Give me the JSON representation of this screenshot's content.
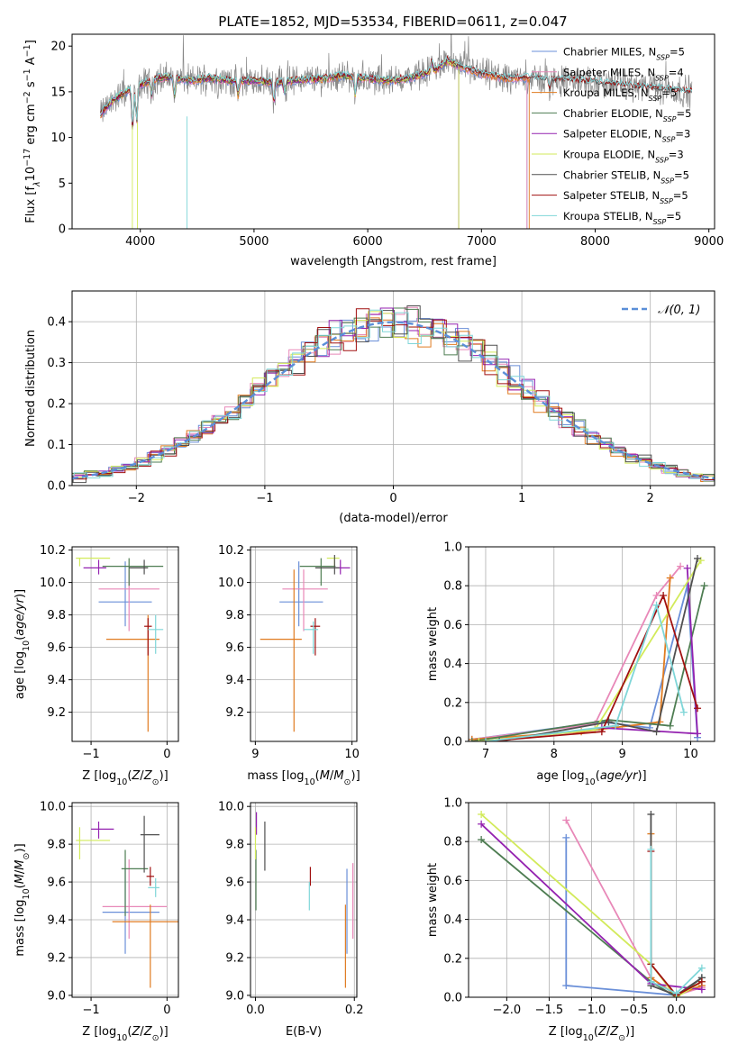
{
  "figure_title": "PLATE=1852, MJD=53534, FIBERID=0611, z=0.047",
  "colors": {
    "Chabrier MILES": "#6a8fd8",
    "Salpeter MILES": "#e888b8",
    "Kroupa MILES": "#e07b20",
    "Chabrier ELODIE": "#4e7d52",
    "Salpeter ELODIE": "#9422b0",
    "Kroupa ELODIE": "#d2ea5a",
    "Chabrier STELIB": "#505050",
    "Salpeter STELIB": "#a01010",
    "Kroupa STELIB": "#7fd6d8"
  },
  "chart_data": [
    {
      "id": "spectrum",
      "type": "line",
      "title": "PLATE=1852, MJD=53534, FIBERID=0611, z=0.047",
      "xlabel": "wavelength [Angstrom, rest frame]",
      "ylabel_parts": [
        "Flux [f",
        "λ",
        "10",
        "−17",
        " erg cm",
        "−2",
        " s",
        "−1",
        " A",
        "−1",
        "]"
      ],
      "xlim": [
        3400,
        9050
      ],
      "ylim": [
        0,
        21.3
      ],
      "xticks": [
        4000,
        5000,
        6000,
        7000,
        8000,
        9000
      ],
      "yticks": [
        0,
        5,
        10,
        15,
        20
      ],
      "grid": false,
      "legend_position": "top-right",
      "legend": [
        {
          "name": "Chabrier MILES",
          "nssp": "5"
        },
        {
          "name": "Salpeter MILES",
          "nssp": "4"
        },
        {
          "name": "Kroupa MILES",
          "nssp": "5"
        },
        {
          "name": "Chabrier ELODIE",
          "nssp": "5"
        },
        {
          "name": "Salpeter ELODIE",
          "nssp": "3"
        },
        {
          "name": "Kroupa ELODIE",
          "nssp": "3"
        },
        {
          "name": "Chabrier STELIB",
          "nssp": "5"
        },
        {
          "name": "Salpeter STELIB",
          "nssp": "5"
        },
        {
          "name": "Kroupa STELIB",
          "nssp": "5"
        }
      ],
      "continuum": {
        "x": [
          3650,
          3750,
          3850,
          3950,
          4050,
          4150,
          4300,
          4450,
          4600,
          4800,
          5000,
          5200,
          5400,
          5600,
          5800,
          6000,
          6200,
          6400,
          6600,
          6700,
          6800,
          7000,
          7200,
          7400,
          7600,
          7800,
          8000,
          8200,
          8400,
          8600,
          8800
        ],
        "y": [
          12.5,
          14.0,
          14.8,
          15.5,
          16.0,
          16.5,
          16.6,
          16.2,
          16.5,
          16.2,
          16.2,
          16.0,
          16.3,
          16.4,
          16.8,
          16.4,
          16.2,
          16.6,
          17.4,
          18.4,
          17.8,
          17.0,
          16.5,
          16.5,
          16.3,
          16.2,
          16.0,
          15.8,
          15.5,
          15.3,
          15.0
        ]
      },
      "data_range": [
        3650,
        8850
      ],
      "model_range": {
        "Chabrier MILES": [
          3650,
          7400
        ],
        "Salpeter MILES": [
          3650,
          7400
        ],
        "Kroupa MILES": [
          3650,
          7420
        ],
        "Chabrier ELODIE": [
          3650,
          6800
        ],
        "Salpeter ELODIE": [
          3650,
          6800
        ],
        "Kroupa ELODIE": [
          3650,
          6800
        ],
        "Chabrier STELIB": [
          3650,
          8850
        ],
        "Salpeter STELIB": [
          3650,
          8850
        ],
        "Kroupa STELIB": [
          3650,
          8850
        ]
      }
    },
    {
      "id": "residuals",
      "type": "histogram",
      "xlabel": "(data-model)/error",
      "ylabel": "Normed distribution",
      "xlim": [
        -2.5,
        2.5
      ],
      "ylim": [
        0,
        0.475
      ],
      "xticks": [
        -2,
        -1,
        0,
        1,
        2
      ],
      "yticks": [
        0.0,
        0.1,
        0.2,
        0.3,
        0.4
      ],
      "grid": true,
      "bin_width": 0.1,
      "gaussian_label": "𝒩(0, 1)",
      "legend_position": "top-right"
    },
    {
      "id": "age_vs_Z",
      "type": "errorbar",
      "xlabel": "Z [log10(Z/Z⊙)]",
      "ylabel": "age  [log10(age/yr)]",
      "xlim": [
        -1.25,
        0.15
      ],
      "ylim": [
        9.02,
        10.22
      ],
      "xticks": [
        -1,
        0
      ],
      "yticks": [
        9.2,
        9.4,
        9.6,
        9.8,
        10.0,
        10.2
      ],
      "grid": true,
      "points": [
        {
          "series": "Chabrier MILES",
          "x": -0.55,
          "xerr": [
            0.35,
            0.35
          ],
          "y": 9.88,
          "yerr": [
            0.15,
            0.25
          ]
        },
        {
          "series": "Salpeter MILES",
          "x": -0.5,
          "xerr": [
            0.4,
            0.4
          ],
          "y": 9.96,
          "yerr": [
            0.26,
            0.12
          ]
        },
        {
          "series": "Kroupa MILES",
          "x": -0.25,
          "xerr": [
            0.55,
            0.15
          ],
          "y": 9.65,
          "yerr": [
            0.57,
            0.15
          ]
        },
        {
          "series": "Chabrier ELODIE",
          "x": -0.5,
          "xerr": [
            0.35,
            0.45
          ],
          "y": 10.1,
          "yerr": [
            0.12,
            0.05
          ]
        },
        {
          "series": "Salpeter ELODIE",
          "x": -0.9,
          "xerr": [
            0.2,
            0.1
          ],
          "y": 10.09,
          "yerr": [
            0.04,
            0.05
          ]
        },
        {
          "series": "Kroupa ELODIE",
          "x": -1.15,
          "xerr": [
            0.05,
            0.4
          ],
          "y": 10.15,
          "yerr": [
            0.05,
            0.0
          ]
        },
        {
          "series": "Chabrier STELIB",
          "x": -0.3,
          "xerr": [
            0.2,
            0.05
          ],
          "y": 10.09,
          "yerr": [
            0.04,
            0.05
          ]
        },
        {
          "series": "Salpeter STELIB",
          "x": -0.25,
          "xerr": [
            0.05,
            0.05
          ],
          "y": 9.73,
          "yerr": [
            0.18,
            0.05
          ]
        },
        {
          "series": "Kroupa STELIB",
          "x": -0.15,
          "xerr": [
            0.1,
            0.1
          ],
          "y": 9.71,
          "yerr": [
            0.15,
            0.09
          ]
        }
      ]
    },
    {
      "id": "age_vs_mass",
      "type": "errorbar",
      "xlabel": "mass [log10(M/M⊙)]",
      "ylabel": "",
      "xlim": [
        8.95,
        10.05
      ],
      "ylim": [
        9.02,
        10.22
      ],
      "xticks": [
        9,
        10
      ],
      "yticks": [
        9.2,
        9.4,
        9.6,
        9.8,
        10.0,
        10.2
      ],
      "grid": true,
      "points": [
        {
          "series": "Chabrier MILES",
          "x": 9.45,
          "xerr": [
            0.2,
            0.25
          ],
          "y": 9.88,
          "yerr": [
            0.15,
            0.25
          ]
        },
        {
          "series": "Salpeter MILES",
          "x": 9.5,
          "xerr": [
            0.22,
            0.25
          ],
          "y": 9.96,
          "yerr": [
            0.26,
            0.12
          ]
        },
        {
          "series": "Kroupa MILES",
          "x": 9.4,
          "xerr": [
            0.35,
            0.08
          ],
          "y": 9.65,
          "yerr": [
            0.57,
            0.43
          ]
        },
        {
          "series": "Chabrier ELODIE",
          "x": 9.68,
          "xerr": [
            0.22,
            0.15
          ],
          "y": 10.1,
          "yerr": [
            0.12,
            0.05
          ]
        },
        {
          "series": "Salpeter ELODIE",
          "x": 9.88,
          "xerr": [
            0.05,
            0.1
          ],
          "y": 10.09,
          "yerr": [
            0.04,
            0.05
          ]
        },
        {
          "series": "Kroupa ELODIE",
          "x": 9.82,
          "xerr": [
            0.08,
            0.05
          ],
          "y": 10.15,
          "yerr": [
            0.05,
            0.0
          ]
        },
        {
          "series": "Chabrier STELIB",
          "x": 9.82,
          "xerr": [
            0.2,
            0.05
          ],
          "y": 10.09,
          "yerr": [
            0.04,
            0.08
          ]
        },
        {
          "series": "Salpeter STELIB",
          "x": 9.62,
          "xerr": [
            0.05,
            0.05
          ],
          "y": 9.73,
          "yerr": [
            0.18,
            0.05
          ]
        },
        {
          "series": "Kroupa STELIB",
          "x": 9.6,
          "xerr": [
            0.1,
            0.05
          ],
          "y": 9.71,
          "yerr": [
            0.15,
            0.05
          ]
        }
      ]
    },
    {
      "id": "mass_weight_vs_age",
      "type": "line",
      "xlabel": "age  [log10(age/yr)]",
      "ylabel": "mass weight",
      "xlim": [
        6.75,
        10.35
      ],
      "ylim": [
        0,
        1
      ],
      "xticks": [
        7,
        8,
        9,
        10
      ],
      "yticks": [
        0.0,
        0.2,
        0.4,
        0.6,
        0.8,
        1.0
      ],
      "grid": true,
      "series": [
        {
          "name": "Chabrier MILES",
          "x": [
            6.8,
            8.7,
            9.4,
            9.95,
            10.1
          ],
          "y": [
            0.01,
            0.1,
            0.07,
            0.8,
            0.02
          ]
        },
        {
          "name": "Salpeter MILES",
          "x": [
            6.8,
            8.6,
            9.5,
            9.85
          ],
          "y": [
            0.01,
            0.09,
            0.75,
            0.9
          ]
        },
        {
          "name": "Kroupa MILES",
          "x": [
            6.8,
            8.4,
            9.55,
            9.7
          ],
          "y": [
            0.01,
            0.05,
            0.1,
            0.84
          ]
        },
        {
          "name": "Chabrier ELODIE",
          "x": [
            6.8,
            8.8,
            9.7,
            10.2
          ],
          "y": [
            0.0,
            0.11,
            0.08,
            0.8
          ]
        },
        {
          "name": "Salpeter ELODIE",
          "x": [
            7.0,
            8.7,
            10.1,
            9.95
          ],
          "y": [
            0.0,
            0.07,
            0.04,
            0.89
          ]
        },
        {
          "name": "Kroupa ELODIE",
          "x": [
            6.9,
            8.6,
            10.15
          ],
          "y": [
            0.0,
            0.06,
            0.93
          ]
        },
        {
          "name": "Chabrier STELIB",
          "x": [
            7.2,
            8.8,
            9.5,
            10.1
          ],
          "y": [
            0.0,
            0.1,
            0.05,
            0.94
          ]
        },
        {
          "name": "Salpeter STELIB",
          "x": [
            7.0,
            8.7,
            9.6,
            10.1
          ],
          "y": [
            0.0,
            0.05,
            0.75,
            0.17
          ]
        },
        {
          "name": "Kroupa STELIB",
          "x": [
            7.0,
            8.9,
            9.5,
            9.9
          ],
          "y": [
            0.0,
            0.08,
            0.7,
            0.15
          ]
        }
      ]
    },
    {
      "id": "mass_vs_Z",
      "type": "errorbar",
      "xlabel": "Z [log10(Z/Z⊙)]",
      "ylabel": "mass [log10(M/M⊙)]",
      "xlim": [
        -1.25,
        0.15
      ],
      "ylim": [
        8.99,
        10.02
      ],
      "xticks": [
        -1,
        0
      ],
      "yticks": [
        9.0,
        9.2,
        9.4,
        9.6,
        9.8,
        10.0
      ],
      "grid": true,
      "points": [
        {
          "series": "Chabrier MILES",
          "x": -0.55,
          "xerr": [
            0.3,
            0.45
          ],
          "y": 9.44,
          "yerr": [
            0.22,
            0.23
          ]
        },
        {
          "series": "Salpeter MILES",
          "x": -0.5,
          "xerr": [
            0.35,
            0.5
          ],
          "y": 9.47,
          "yerr": [
            0.17,
            0.25
          ]
        },
        {
          "series": "Kroupa MILES",
          "x": -0.22,
          "xerr": [
            0.5,
            0.4
          ],
          "y": 9.39,
          "yerr": [
            0.35,
            0.09
          ]
        },
        {
          "series": "Chabrier ELODIE",
          "x": -0.55,
          "xerr": [
            0.05,
            0.3
          ],
          "y": 9.67,
          "yerr": [
            0.25,
            0.1
          ]
        },
        {
          "series": "Salpeter ELODIE",
          "x": -0.9,
          "xerr": [
            0.1,
            0.2
          ],
          "y": 9.88,
          "yerr": [
            0.05,
            0.04
          ]
        },
        {
          "series": "Kroupa ELODIE",
          "x": -1.15,
          "xerr": [
            0.05,
            0.4
          ],
          "y": 9.82,
          "yerr": [
            0.1,
            0.07
          ]
        },
        {
          "series": "Chabrier STELIB",
          "x": -0.3,
          "xerr": [
            0.05,
            0.2
          ],
          "y": 9.85,
          "yerr": [
            0.2,
            0.1
          ]
        },
        {
          "series": "Salpeter STELIB",
          "x": -0.22,
          "xerr": [
            0.05,
            0.05
          ],
          "y": 9.63,
          "yerr": [
            0.05,
            0.05
          ]
        },
        {
          "series": "Kroupa STELIB",
          "x": -0.15,
          "xerr": [
            0.1,
            0.05
          ],
          "y": 9.57,
          "yerr": [
            0.05,
            0.05
          ]
        }
      ]
    },
    {
      "id": "mass_vs_EBV",
      "type": "errorbar",
      "xlabel": "E(B-V)",
      "ylabel": "",
      "xlim": [
        -0.01,
        0.205
      ],
      "ylim": [
        8.99,
        10.02
      ],
      "xticks": [
        0.0,
        0.2
      ],
      "yticks": [
        9.0,
        9.2,
        9.4,
        9.6,
        9.8,
        10.0
      ],
      "grid": true,
      "points": [
        {
          "series": "Chabrier MILES",
          "x": 0.185,
          "y": 9.44,
          "yerr": [
            0.22,
            0.23
          ]
        },
        {
          "series": "Salpeter MILES",
          "x": 0.197,
          "y": 9.47,
          "yerr": [
            0.17,
            0.23
          ]
        },
        {
          "series": "Kroupa MILES",
          "x": 0.182,
          "y": 9.39,
          "yerr": [
            0.35,
            0.09
          ]
        },
        {
          "series": "Chabrier ELODIE",
          "x": 0.001,
          "y": 9.67,
          "yerr": [
            0.22,
            0.1
          ]
        },
        {
          "series": "Salpeter ELODIE",
          "x": 0.002,
          "y": 9.88,
          "yerr": [
            0.03,
            0.09
          ]
        },
        {
          "series": "Kroupa ELODIE",
          "x": 0.0,
          "y": 9.82,
          "yerr": [
            0.1,
            0.07
          ]
        },
        {
          "series": "Chabrier STELIB",
          "x": 0.019,
          "y": 9.8,
          "yerr": [
            0.14,
            0.12
          ]
        },
        {
          "series": "Salpeter STELIB",
          "x": 0.111,
          "y": 9.63,
          "yerr": [
            0.05,
            0.05
          ]
        },
        {
          "series": "Kroupa STELIB",
          "x": 0.109,
          "y": 9.55,
          "yerr": [
            0.1,
            0.05
          ]
        }
      ]
    },
    {
      "id": "mass_weight_vs_Z",
      "type": "line",
      "xlabel": "Z [log10(Z/Z⊙)]",
      "ylabel": "mass weight",
      "xlim": [
        -2.45,
        0.45
      ],
      "ylim": [
        0,
        1
      ],
      "xticks": [
        -2.0,
        -1.5,
        -1.0,
        -0.5,
        0.0
      ],
      "yticks": [
        0.0,
        0.2,
        0.4,
        0.6,
        0.8,
        1.0
      ],
      "grid": true,
      "series": [
        {
          "name": "Chabrier MILES",
          "x": [
            -1.3,
            -1.3,
            0.0,
            0.3
          ],
          "y": [
            0.82,
            0.06,
            0.01,
            0.1
          ]
        },
        {
          "name": "Salpeter MILES",
          "x": [
            -1.3,
            -0.3,
            0.0,
            0.3
          ],
          "y": [
            0.91,
            0.1,
            0.01,
            0.05
          ]
        },
        {
          "name": "Kroupa MILES",
          "x": [
            -0.3,
            -0.3,
            0.0,
            0.3
          ],
          "y": [
            0.84,
            0.1,
            0.01,
            0.06
          ]
        },
        {
          "name": "Chabrier ELODIE",
          "x": [
            -2.3,
            -0.3,
            0.0,
            0.3
          ],
          "y": [
            0.81,
            0.08,
            0.0,
            0.1
          ]
        },
        {
          "name": "Salpeter ELODIE",
          "x": [
            -2.3,
            -0.3,
            0.3
          ],
          "y": [
            0.89,
            0.07,
            0.04
          ]
        },
        {
          "name": "Kroupa ELODIE",
          "x": [
            -2.3,
            -0.3,
            0.0,
            0.3
          ],
          "y": [
            0.94,
            0.17,
            0.0,
            0.08
          ]
        },
        {
          "name": "Chabrier STELIB",
          "x": [
            -0.3,
            -0.3,
            0.0,
            0.3
          ],
          "y": [
            0.94,
            0.06,
            0.01,
            0.1
          ]
        },
        {
          "name": "Salpeter STELIB",
          "x": [
            -0.3,
            -0.3,
            0.0,
            0.3
          ],
          "y": [
            0.75,
            0.17,
            0.01,
            0.08
          ]
        },
        {
          "name": "Kroupa STELIB",
          "x": [
            -0.3,
            -0.3,
            0.0,
            0.3
          ],
          "y": [
            0.76,
            0.08,
            0.02,
            0.15
          ]
        }
      ]
    }
  ]
}
